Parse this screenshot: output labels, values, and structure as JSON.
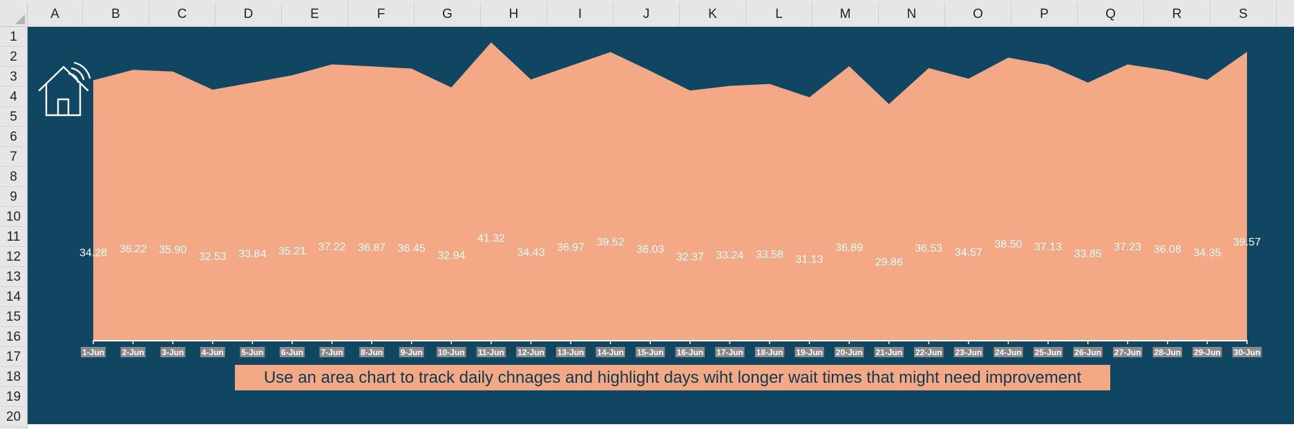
{
  "spreadsheet": {
    "columns": [
      "A",
      "B",
      "C",
      "D",
      "E",
      "F",
      "G",
      "H",
      "I",
      "J",
      "K",
      "L",
      "M",
      "N",
      "O",
      "P",
      "Q",
      "R",
      "S"
    ],
    "rows": [
      "1",
      "2",
      "3",
      "4",
      "5",
      "6",
      "7",
      "8",
      "9",
      "10",
      "11",
      "12",
      "13",
      "14",
      "15",
      "16",
      "17",
      "18",
      "19",
      "20"
    ]
  },
  "dashboard": {
    "icon": "smart-home-wifi-icon",
    "caption": "Use an area chart to track daily chnages and highlight days wiht longer wait times that might need improvement",
    "colors": {
      "background": "#114663",
      "area": "#f3a886",
      "caption_bg": "#f3a886",
      "caption_text": "#12384f",
      "tick_label_bg": "#8a8a8a"
    }
  },
  "chart_data": {
    "type": "area",
    "title": "",
    "xlabel": "",
    "ylabel": "",
    "categories": [
      "1-Jun",
      "2-Jun",
      "3-Jun",
      "4-Jun",
      "5-Jun",
      "6-Jun",
      "7-Jun",
      "8-Jun",
      "9-Jun",
      "10-Jun",
      "11-Jun",
      "12-Jun",
      "13-Jun",
      "14-Jun",
      "15-Jun",
      "16-Jun",
      "17-Jun",
      "18-Jun",
      "19-Jun",
      "20-Jun",
      "21-Jun",
      "22-Jun",
      "23-Jun",
      "24-Jun",
      "25-Jun",
      "26-Jun",
      "27-Jun",
      "28-Jun",
      "29-Jun",
      "30-Jun"
    ],
    "values": [
      34.28,
      36.22,
      35.9,
      32.53,
      33.84,
      35.21,
      37.22,
      36.87,
      36.45,
      32.94,
      41.32,
      34.43,
      36.97,
      39.52,
      36.03,
      32.37,
      33.24,
      33.58,
      31.13,
      36.89,
      29.86,
      36.53,
      34.57,
      38.5,
      37.13,
      33.85,
      37.23,
      36.08,
      34.35,
      39.57
    ],
    "value_labels": [
      "34.28",
      "36.22",
      "35.90",
      "32.53",
      "33.84",
      "35.21",
      "37.22",
      "36.87",
      "36.45",
      "32.94",
      "41.32",
      "34.43",
      "36.97",
      "39.52",
      "36.03",
      "32.37",
      "33.24",
      "33.58",
      "31.13",
      "36.89",
      "29.86",
      "36.53",
      "34.57",
      "38.50",
      "37.13",
      "33.85",
      "37.23",
      "36.08",
      "34.35",
      "39.57"
    ],
    "ylim": [
      -14,
      44.2
    ],
    "grid": false,
    "legend": "none"
  }
}
